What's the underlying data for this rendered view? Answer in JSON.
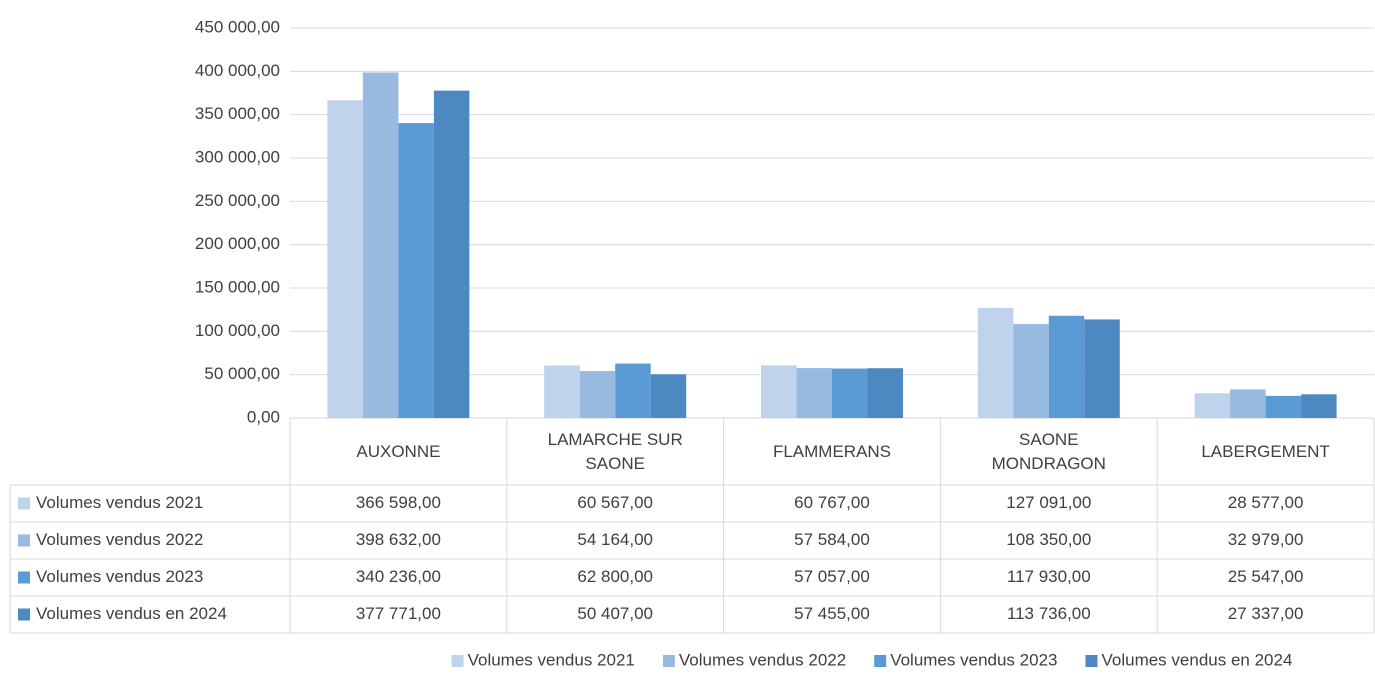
{
  "chart_data": {
    "type": "bar",
    "categories": [
      "AUXONNE",
      "LAMARCHE SUR SAONE",
      "FLAMMERANS",
      "SAONE MONDRAGON",
      "LABERGEMENT"
    ],
    "series": [
      {
        "name": "Volumes vendus 2021",
        "color": "#c0d3ec",
        "values": [
          366598,
          60567,
          60767,
          127091,
          28577
        ],
        "value_labels": [
          "366 598,00",
          "60 567,00",
          "60 767,00",
          "127 091,00",
          "28 577,00"
        ]
      },
      {
        "name": "Volumes vendus 2022",
        "color": "#98b9e0",
        "values": [
          398632,
          54164,
          57584,
          108350,
          32979
        ],
        "value_labels": [
          "398 632,00",
          "54 164,00",
          "57 584,00",
          "108 350,00",
          "32 979,00"
        ]
      },
      {
        "name": "Volumes vendus 2023",
        "color": "#5b9bd5",
        "values": [
          340236,
          62800,
          57057,
          117930,
          25547
        ],
        "value_labels": [
          "340 236,00",
          "62 800,00",
          "57 057,00",
          "117 930,00",
          "25 547,00"
        ]
      },
      {
        "name": "Volumes vendus en 2024",
        "color": "#4e88c0",
        "values": [
          377771,
          50407,
          57455,
          113736,
          27337
        ],
        "value_labels": [
          "377 771,00",
          "50 407,00",
          "57 455,00",
          "113 736,00",
          "27 337,00"
        ]
      }
    ],
    "ylim": [
      0,
      450000
    ],
    "yticks": [
      {
        "value": 0,
        "label": "0,00"
      },
      {
        "value": 50000,
        "label": "50 000,00"
      },
      {
        "value": 100000,
        "label": "100 000,00"
      },
      {
        "value": 150000,
        "label": "150 000,00"
      },
      {
        "value": 200000,
        "label": "200 000,00"
      },
      {
        "value": 250000,
        "label": "250 000,00"
      },
      {
        "value": 300000,
        "label": "300 000,00"
      },
      {
        "value": 350000,
        "label": "350 000,00"
      },
      {
        "value": 400000,
        "label": "400 000,00"
      },
      {
        "value": 450000,
        "label": "450 000,00"
      }
    ],
    "grid": true,
    "legend": "bottom"
  }
}
